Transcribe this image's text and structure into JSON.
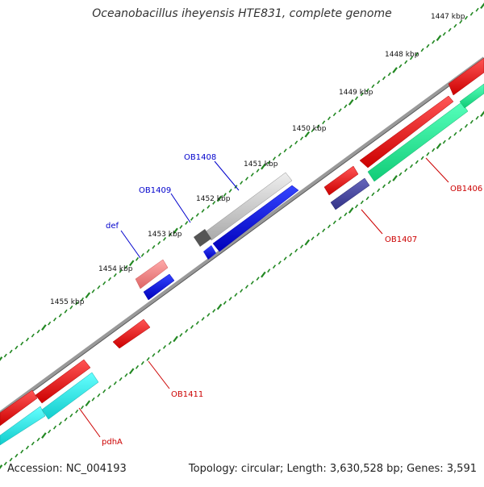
{
  "title": "Oceanobacillus iheyensis HTE831, complete genome",
  "accession": "Accession: NC_004193",
  "summary": "Topology: circular; Length: 3,630,528 bp; Genes: 3,591",
  "ticks": [
    "1447 kbp",
    "1448 kbp",
    "1449 kbp",
    "1450 kbp",
    "1451 kbp",
    "1452 kbp",
    "1453 kbp",
    "1454 kbp",
    "1455 kbp"
  ],
  "colors": {
    "forward_cds": "#ff0000",
    "reverse_cds": "#0000ee",
    "forward_label": "#cc0000",
    "reverse_label": "#0000cc",
    "rrna_green": "#22ee99",
    "cyan_gene": "#22eeee",
    "grey_gene": "#cccccc",
    "purple_gene": "#444499",
    "backbone": "#888888",
    "tick": "#228822"
  },
  "genes": [
    {
      "id": "OB1406",
      "label": "OB1406",
      "strand": "forward"
    },
    {
      "id": "OB1407",
      "label": "OB1407",
      "strand": "forward"
    },
    {
      "id": "OB1408",
      "label": "OB1408",
      "strand": "reverse"
    },
    {
      "id": "OB1409",
      "label": "OB1409",
      "strand": "reverse"
    },
    {
      "id": "def",
      "label": "def",
      "strand": "reverse"
    },
    {
      "id": "OB1411",
      "label": "OB1411",
      "strand": "forward"
    },
    {
      "id": "pdhA",
      "label": "pdhA",
      "strand": "forward"
    }
  ]
}
